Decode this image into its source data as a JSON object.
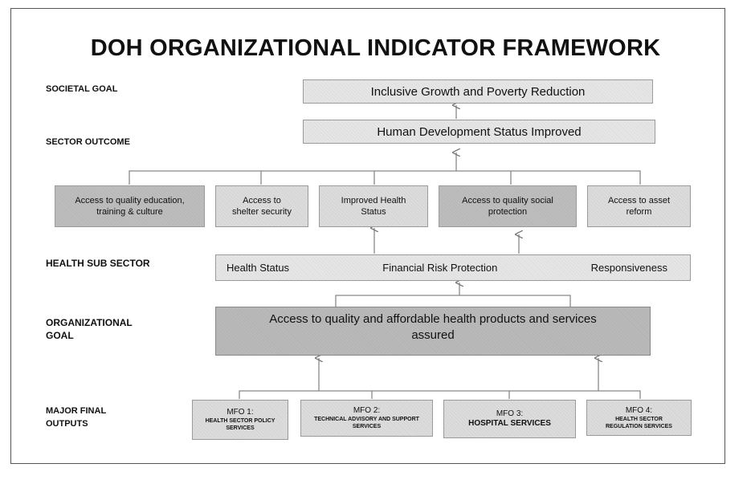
{
  "title": "DOH ORGANIZATIONAL INDICATOR FRAMEWORK",
  "levels": {
    "societal_goal": "SOCIETAL GOAL",
    "sector_outcome": "SECTOR OUTCOME",
    "health_sub_sector": "HEALTH SUB SECTOR",
    "organizational_goal_line1": "ORGANIZATIONAL",
    "organizational_goal_line2": "GOAL",
    "major_final_outputs_line1": "MAJOR FINAL",
    "major_final_outputs_line2": "OUTPUTS"
  },
  "societal_goal": "Inclusive Growth and Poverty Reduction",
  "sector_outcome": "Human Development Status Improved",
  "sector_boxes": [
    {
      "line1": "Access to quality education,",
      "line2": "training & culture"
    },
    {
      "line1": "Access to",
      "line2": "shelter security"
    },
    {
      "line1": "Improved Health",
      "line2": "Status"
    },
    {
      "line1": "Access to  quality social",
      "line2": "protection"
    },
    {
      "line1": "Access to asset",
      "line2": "reform"
    }
  ],
  "health_sub_sector": {
    "item1": "Health Status",
    "item2": "Financial Risk Protection",
    "item3": "Responsiveness"
  },
  "organizational_goal": {
    "line1": "Access to quality and affordable health products and services",
    "line2": "assured"
  },
  "mfos": [
    {
      "title": "MFO 1:",
      "line1": "HEALTH SECTOR POLICY",
      "line2": "SERVICES"
    },
    {
      "title": "MFO 2:",
      "line1": "TECHNICAL ADVISORY AND SUPPORT",
      "line2": "SERVICES"
    },
    {
      "title": "MFO 3:",
      "line1": "HOSPITAL SERVICES",
      "line2": ""
    },
    {
      "title": "MFO 4:",
      "line1": "HEALTH SECTOR",
      "line2": "REGULATION SERVICES"
    }
  ]
}
